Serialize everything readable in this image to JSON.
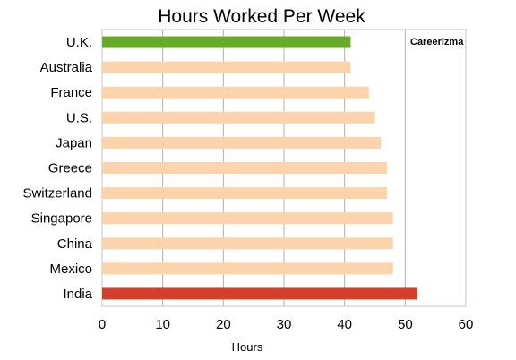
{
  "chart_data": {
    "type": "bar",
    "orientation": "horizontal",
    "title": "Hours Worked Per Week",
    "xlabel": "Hours",
    "ylabel": "",
    "xlim": [
      0,
      60
    ],
    "x_ticks": [
      0,
      10,
      20,
      30,
      40,
      50,
      60
    ],
    "grid": "vertical gridlines",
    "categories": [
      "U.K.",
      "Australia",
      "France",
      "U.S.",
      "Japan",
      "Greece",
      "Switzerland",
      "Singapore",
      "China",
      "Mexico",
      "India"
    ],
    "values": [
      41,
      41,
      44,
      45,
      46,
      47,
      47,
      48,
      48,
      48,
      52
    ],
    "bar_colors": [
      "#6aaa2a",
      "#fcd3aa",
      "#fcd3aa",
      "#fcd3aa",
      "#fcd3aa",
      "#fcd3aa",
      "#fcd3aa",
      "#fcd3aa",
      "#fcd3aa",
      "#fcd3aa",
      "#d23f2c"
    ]
  },
  "branding": {
    "logo_text": "Careerizma"
  }
}
